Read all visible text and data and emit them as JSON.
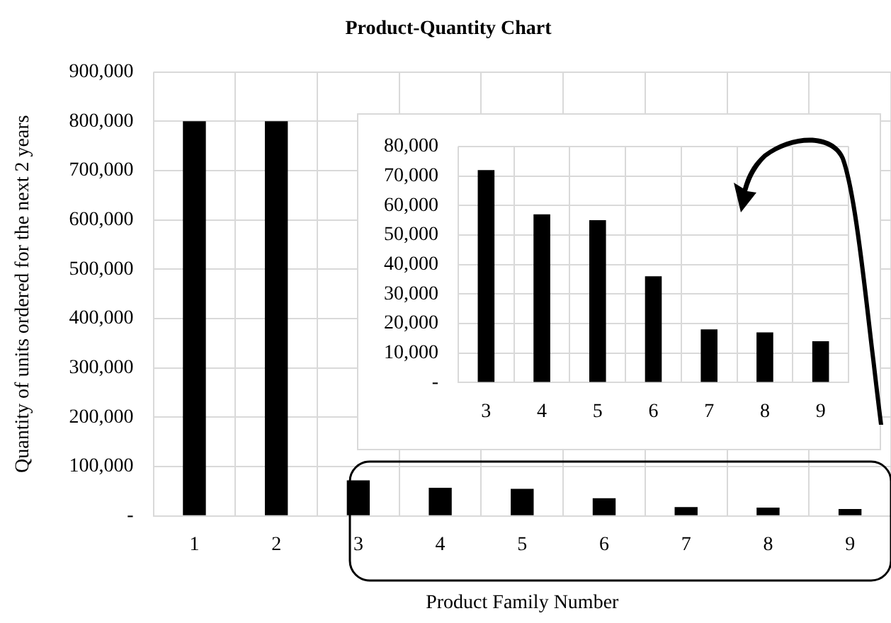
{
  "chart_data": [
    {
      "type": "bar",
      "title": "Product-Quantity Chart",
      "xlabel": "Product Family Number",
      "ylabel": "Quantity of units ordered for the next 2 years",
      "categories": [
        "1",
        "2",
        "3",
        "4",
        "5",
        "6",
        "7",
        "8",
        "9"
      ],
      "values": [
        800000,
        800000,
        72000,
        57000,
        55000,
        36000,
        18000,
        17000,
        14000
      ],
      "color": "#000000",
      "ylim": [
        0,
        900000
      ],
      "yticks": [
        {
          "value": 0,
          "label": "-"
        },
        {
          "value": 100000,
          "label": "100,000"
        },
        {
          "value": 200000,
          "label": "200,000"
        },
        {
          "value": 300000,
          "label": "300,000"
        },
        {
          "value": 400000,
          "label": "400,000"
        },
        {
          "value": 500000,
          "label": "500,000"
        },
        {
          "value": 600000,
          "label": "600,000"
        },
        {
          "value": 700000,
          "label": "700,000"
        },
        {
          "value": 800000,
          "label": "800,000"
        },
        {
          "value": 900000,
          "label": "900,000"
        }
      ],
      "grid": true
    },
    {
      "type": "bar",
      "categories": [
        "3",
        "4",
        "5",
        "6",
        "7",
        "8",
        "9"
      ],
      "values": [
        72000,
        57000,
        55000,
        36000,
        18000,
        17000,
        14000
      ],
      "color": "#000000",
      "ylim": [
        0,
        80000
      ],
      "yticks": [
        {
          "value": 0,
          "label": "-"
        },
        {
          "value": 10000,
          "label": "10,000"
        },
        {
          "value": 20000,
          "label": "20,000"
        },
        {
          "value": 30000,
          "label": "30,000"
        },
        {
          "value": 40000,
          "label": "40,000"
        },
        {
          "value": 50000,
          "label": "50,000"
        },
        {
          "value": 60000,
          "label": "60,000"
        },
        {
          "value": 70000,
          "label": "70,000"
        },
        {
          "value": 80000,
          "label": "80,000"
        }
      ],
      "grid": true
    }
  ]
}
